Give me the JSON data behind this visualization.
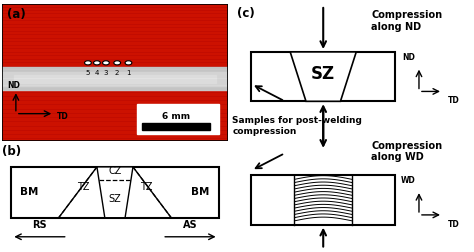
{
  "bg_color": "#ffffff",
  "red_color": "#cc1100",
  "label_a": "(a)",
  "label_b": "(b)",
  "label_c": "(c)",
  "scale_bar_text": "6 mm",
  "compression_nd": "Compression\nalong ND",
  "compression_wd": "Compression\nalong WD",
  "samples_label": "Samples for post-welding\ncompression",
  "dots_nums": [
    "5",
    "4",
    "3",
    "2",
    "1"
  ]
}
